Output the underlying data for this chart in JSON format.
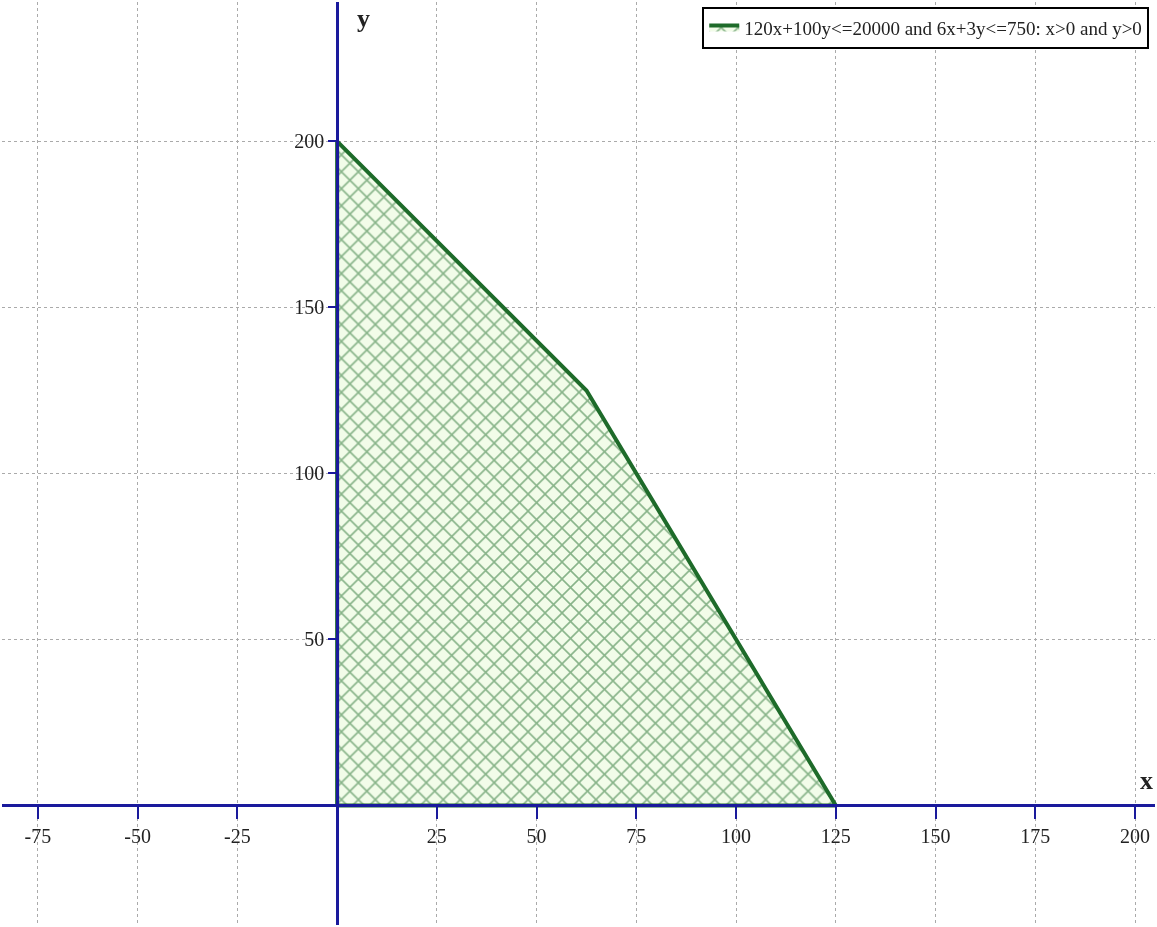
{
  "chart_data": {
    "type": "area",
    "xlabel": "x",
    "ylabel": "y",
    "x": [
      0,
      0,
      62.5,
      125,
      0
    ],
    "series": [
      {
        "name": "120x+100y<=20000 and 6x+3y<=750: x>0 and y>0",
        "color": "#1e6b2a",
        "values": [
          0,
          200,
          125,
          0,
          0
        ]
      }
    ],
    "xlim": [
      -84,
      205
    ],
    "ylim": [
      -36,
      242
    ],
    "xticks": [
      -75,
      -50,
      -25,
      25,
      50,
      75,
      100,
      125,
      150,
      175,
      200
    ],
    "yticks": [
      50,
      100,
      150,
      200
    ],
    "grid": true,
    "legend": "top right"
  }
}
